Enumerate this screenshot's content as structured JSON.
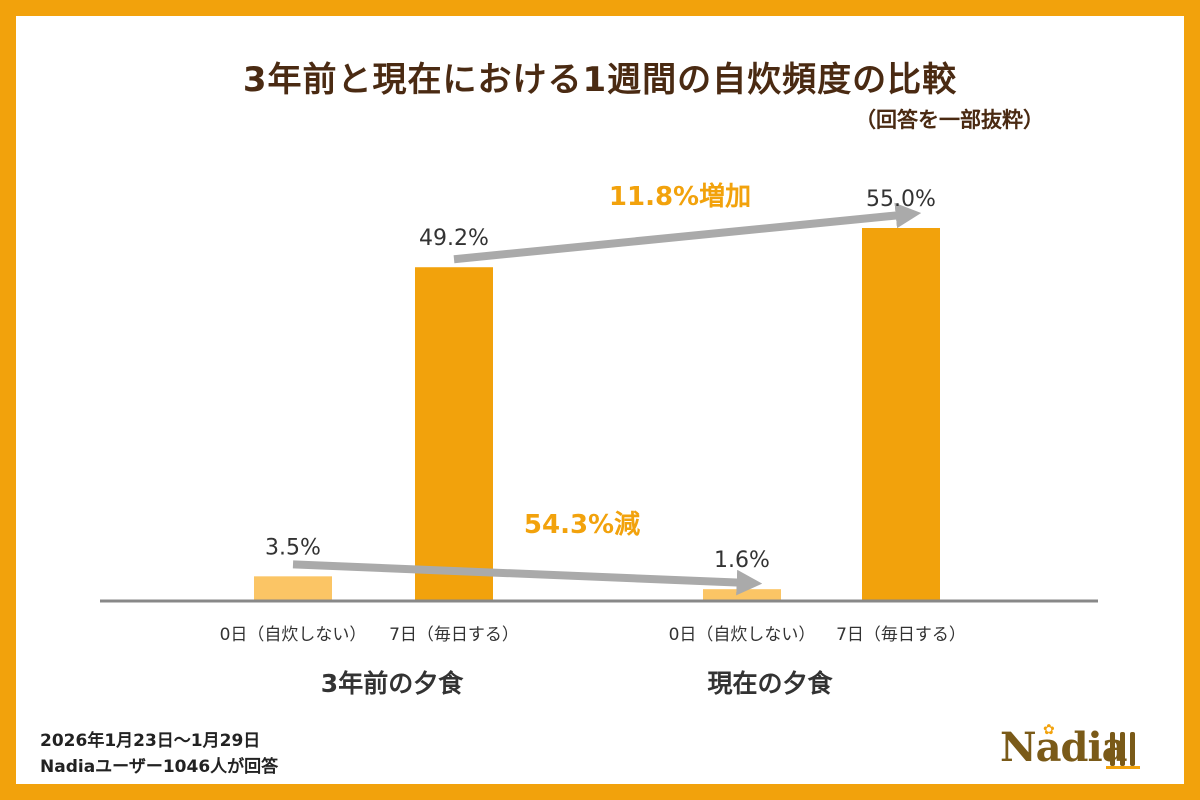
{
  "header": {
    "title": "3年前と現在における1週間の自炊頻度の比較",
    "subtitle": "（回答を一部抜粋）"
  },
  "chart_data": {
    "type": "bar",
    "groups": [
      "3年前の夕食",
      "現在の夕食"
    ],
    "categories": [
      "0日（自炊しない）",
      "7日（毎日する）"
    ],
    "series": [
      {
        "group": "3年前の夕食",
        "category": "0日（自炊しない）",
        "value": 3.5,
        "label": "3.5%",
        "color": "#fbc565"
      },
      {
        "group": "3年前の夕食",
        "category": "7日（毎日する）",
        "value": 49.2,
        "label": "49.2%",
        "color": "#f2a20c"
      },
      {
        "group": "現在の夕食",
        "category": "0日（自炊しない）",
        "value": 1.6,
        "label": "1.6%",
        "color": "#fbc565"
      },
      {
        "group": "現在の夕食",
        "category": "7日（毎日する）",
        "value": 55.0,
        "label": "55.0%",
        "color": "#f2a20c"
      }
    ],
    "ylim": [
      0,
      60
    ],
    "annotations": [
      {
        "text": "11.8%増加",
        "from": "7日（毎日する）@3年前の夕食",
        "to": "7日（毎日する）@現在の夕食"
      },
      {
        "text": "54.3%減",
        "from": "0日（自炊しない）@3年前の夕食",
        "to": "0日（自炊しない）@現在の夕食"
      }
    ],
    "colors": {
      "accent": "#f2a20c",
      "light": "#fbc565",
      "arrow": "#aaaaaa",
      "axis": "#888888"
    }
  },
  "footer": {
    "period": "2026年1月23日～1月29日",
    "respondents": "Nadiaユーザー1046人が回答"
  },
  "brand": {
    "logo_text": "Nadia"
  }
}
